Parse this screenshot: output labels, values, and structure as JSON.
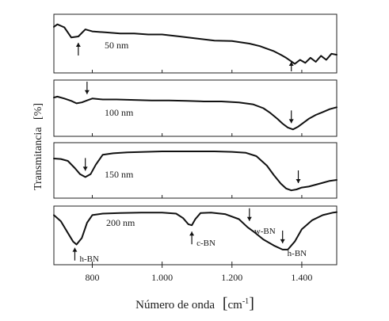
{
  "chart_data": {
    "type": "line",
    "title": "",
    "ylabel": "Transmitancia",
    "ylabel_unit": "[%]",
    "xlabel": "Número de onda",
    "xlabel_unit_base": "cm",
    "xlabel_unit_exp": "-1",
    "xlim": [
      690,
      1500
    ],
    "x_ticks": [
      800,
      1000,
      1200,
      1400
    ],
    "x_tick_labels": [
      "800",
      "1.000",
      "1.200",
      "1.400"
    ],
    "grid": false,
    "legend": "none",
    "panels": [
      {
        "label": "50 nm",
        "series": [
          {
            "x": [
              690,
              700,
              720,
              740,
              760,
              780,
              800,
              840,
              880,
              920,
              960,
              1000,
              1050,
              1100,
              1150,
              1200,
              1250,
              1280,
              1300,
              1320,
              1340,
              1355,
              1370,
              1380,
              1395,
              1410,
              1425,
              1440,
              1455,
              1470,
              1485,
              1500
            ],
            "y": [
              0.83,
              0.88,
              0.82,
              0.62,
              0.64,
              0.78,
              0.74,
              0.72,
              0.7,
              0.7,
              0.68,
              0.68,
              0.64,
              0.6,
              0.56,
              0.55,
              0.5,
              0.45,
              0.4,
              0.35,
              0.28,
              0.22,
              0.15,
              0.1,
              0.18,
              0.12,
              0.22,
              0.14,
              0.26,
              0.18,
              0.3,
              0.28
            ]
          }
        ],
        "annotations": [
          {
            "x": 760,
            "direction": "up",
            "text": ""
          },
          {
            "x": 1370,
            "direction": "up",
            "text": ""
          }
        ]
      },
      {
        "label": "100 nm",
        "series": [
          {
            "x": [
              690,
              700,
              720,
              740,
              755,
              770,
              785,
              800,
              830,
              870,
              920,
              970,
              1020,
              1070,
              1120,
              1170,
              1220,
              1260,
              1290,
              1310,
              1330,
              1345,
              1360,
              1375,
              1390,
              1405,
              1420,
              1440,
              1460,
              1480,
              1500
            ],
            "y": [
              0.72,
              0.74,
              0.7,
              0.65,
              0.6,
              0.62,
              0.66,
              0.7,
              0.68,
              0.68,
              0.67,
              0.66,
              0.66,
              0.65,
              0.64,
              0.64,
              0.62,
              0.58,
              0.5,
              0.4,
              0.28,
              0.18,
              0.1,
              0.06,
              0.12,
              0.2,
              0.28,
              0.36,
              0.42,
              0.48,
              0.52
            ]
          }
        ],
        "annotations": [
          {
            "x": 785,
            "direction": "down",
            "text": ""
          },
          {
            "x": 1370,
            "direction": "down",
            "text": ""
          }
        ]
      },
      {
        "label": "150 nm",
        "series": [
          {
            "x": [
              690,
              710,
              730,
              750,
              765,
              780,
              795,
              810,
              830,
              860,
              900,
              950,
              1000,
              1050,
              1100,
              1150,
              1200,
              1240,
              1270,
              1300,
              1320,
              1340,
              1355,
              1370,
              1385,
              1400,
              1420,
              1440,
              1460,
              1480,
              1500
            ],
            "y": [
              0.75,
              0.74,
              0.7,
              0.55,
              0.42,
              0.36,
              0.42,
              0.62,
              0.83,
              0.86,
              0.88,
              0.89,
              0.9,
              0.9,
              0.9,
              0.9,
              0.89,
              0.87,
              0.8,
              0.6,
              0.4,
              0.22,
              0.12,
              0.08,
              0.1,
              0.14,
              0.16,
              0.2,
              0.24,
              0.28,
              0.3
            ]
          }
        ],
        "annotations": [
          {
            "x": 780,
            "direction": "down",
            "text": ""
          },
          {
            "x": 1390,
            "direction": "down",
            "text": ""
          }
        ]
      },
      {
        "label": "200 nm",
        "series": [
          {
            "x": [
              690,
              710,
              730,
              745,
              755,
              770,
              785,
              800,
              830,
              880,
              940,
              1000,
              1040,
              1060,
              1075,
              1085,
              1095,
              1110,
              1140,
              1180,
              1220,
              1245,
              1265,
              1290,
              1320,
              1345,
              1360,
              1380,
              1400,
              1430,
              1460,
              1490,
              1500
            ],
            "y": [
              0.9,
              0.78,
              0.55,
              0.38,
              0.32,
              0.45,
              0.75,
              0.9,
              0.93,
              0.94,
              0.95,
              0.95,
              0.93,
              0.84,
              0.72,
              0.7,
              0.82,
              0.94,
              0.95,
              0.92,
              0.82,
              0.66,
              0.56,
              0.42,
              0.3,
              0.22,
              0.22,
              0.38,
              0.62,
              0.8,
              0.9,
              0.95,
              0.96
            ]
          }
        ],
        "annotations": [
          {
            "x": 750,
            "direction": "up",
            "text": "h-BN"
          },
          {
            "x": 1085,
            "direction": "up",
            "text": "c-BN"
          },
          {
            "x": 1250,
            "direction": "down",
            "text": "w-BN"
          },
          {
            "x": 1345,
            "direction": "down",
            "text": "h-BN"
          }
        ]
      }
    ]
  }
}
